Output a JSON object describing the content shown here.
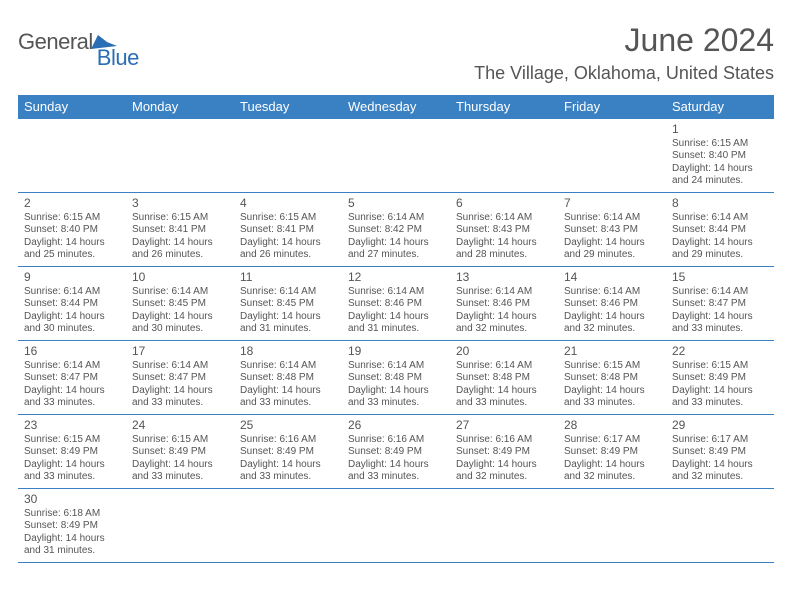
{
  "logo": {
    "general": "General",
    "blue": "Blue"
  },
  "title": "June 2024",
  "location": "The Village, Oklahoma, United States",
  "colors": {
    "header_bg": "#3a81c4",
    "header_text": "#ffffff",
    "body_text": "#555555",
    "rule": "#3a81c4",
    "logo_blue": "#2a6fb5"
  },
  "day_headers": [
    "Sunday",
    "Monday",
    "Tuesday",
    "Wednesday",
    "Thursday",
    "Friday",
    "Saturday"
  ],
  "weeks": [
    [
      null,
      null,
      null,
      null,
      null,
      null,
      {
        "n": "1",
        "sunrise": "Sunrise: 6:15 AM",
        "sunset": "Sunset: 8:40 PM",
        "daylight": "Daylight: 14 hours and 24 minutes."
      }
    ],
    [
      {
        "n": "2",
        "sunrise": "Sunrise: 6:15 AM",
        "sunset": "Sunset: 8:40 PM",
        "daylight": "Daylight: 14 hours and 25 minutes."
      },
      {
        "n": "3",
        "sunrise": "Sunrise: 6:15 AM",
        "sunset": "Sunset: 8:41 PM",
        "daylight": "Daylight: 14 hours and 26 minutes."
      },
      {
        "n": "4",
        "sunrise": "Sunrise: 6:15 AM",
        "sunset": "Sunset: 8:41 PM",
        "daylight": "Daylight: 14 hours and 26 minutes."
      },
      {
        "n": "5",
        "sunrise": "Sunrise: 6:14 AM",
        "sunset": "Sunset: 8:42 PM",
        "daylight": "Daylight: 14 hours and 27 minutes."
      },
      {
        "n": "6",
        "sunrise": "Sunrise: 6:14 AM",
        "sunset": "Sunset: 8:43 PM",
        "daylight": "Daylight: 14 hours and 28 minutes."
      },
      {
        "n": "7",
        "sunrise": "Sunrise: 6:14 AM",
        "sunset": "Sunset: 8:43 PM",
        "daylight": "Daylight: 14 hours and 29 minutes."
      },
      {
        "n": "8",
        "sunrise": "Sunrise: 6:14 AM",
        "sunset": "Sunset: 8:44 PM",
        "daylight": "Daylight: 14 hours and 29 minutes."
      }
    ],
    [
      {
        "n": "9",
        "sunrise": "Sunrise: 6:14 AM",
        "sunset": "Sunset: 8:44 PM",
        "daylight": "Daylight: 14 hours and 30 minutes."
      },
      {
        "n": "10",
        "sunrise": "Sunrise: 6:14 AM",
        "sunset": "Sunset: 8:45 PM",
        "daylight": "Daylight: 14 hours and 30 minutes."
      },
      {
        "n": "11",
        "sunrise": "Sunrise: 6:14 AM",
        "sunset": "Sunset: 8:45 PM",
        "daylight": "Daylight: 14 hours and 31 minutes."
      },
      {
        "n": "12",
        "sunrise": "Sunrise: 6:14 AM",
        "sunset": "Sunset: 8:46 PM",
        "daylight": "Daylight: 14 hours and 31 minutes."
      },
      {
        "n": "13",
        "sunrise": "Sunrise: 6:14 AM",
        "sunset": "Sunset: 8:46 PM",
        "daylight": "Daylight: 14 hours and 32 minutes."
      },
      {
        "n": "14",
        "sunrise": "Sunrise: 6:14 AM",
        "sunset": "Sunset: 8:46 PM",
        "daylight": "Daylight: 14 hours and 32 minutes."
      },
      {
        "n": "15",
        "sunrise": "Sunrise: 6:14 AM",
        "sunset": "Sunset: 8:47 PM",
        "daylight": "Daylight: 14 hours and 33 minutes."
      }
    ],
    [
      {
        "n": "16",
        "sunrise": "Sunrise: 6:14 AM",
        "sunset": "Sunset: 8:47 PM",
        "daylight": "Daylight: 14 hours and 33 minutes."
      },
      {
        "n": "17",
        "sunrise": "Sunrise: 6:14 AM",
        "sunset": "Sunset: 8:47 PM",
        "daylight": "Daylight: 14 hours and 33 minutes."
      },
      {
        "n": "18",
        "sunrise": "Sunrise: 6:14 AM",
        "sunset": "Sunset: 8:48 PM",
        "daylight": "Daylight: 14 hours and 33 minutes."
      },
      {
        "n": "19",
        "sunrise": "Sunrise: 6:14 AM",
        "sunset": "Sunset: 8:48 PM",
        "daylight": "Daylight: 14 hours and 33 minutes."
      },
      {
        "n": "20",
        "sunrise": "Sunrise: 6:14 AM",
        "sunset": "Sunset: 8:48 PM",
        "daylight": "Daylight: 14 hours and 33 minutes."
      },
      {
        "n": "21",
        "sunrise": "Sunrise: 6:15 AM",
        "sunset": "Sunset: 8:48 PM",
        "daylight": "Daylight: 14 hours and 33 minutes."
      },
      {
        "n": "22",
        "sunrise": "Sunrise: 6:15 AM",
        "sunset": "Sunset: 8:49 PM",
        "daylight": "Daylight: 14 hours and 33 minutes."
      }
    ],
    [
      {
        "n": "23",
        "sunrise": "Sunrise: 6:15 AM",
        "sunset": "Sunset: 8:49 PM",
        "daylight": "Daylight: 14 hours and 33 minutes."
      },
      {
        "n": "24",
        "sunrise": "Sunrise: 6:15 AM",
        "sunset": "Sunset: 8:49 PM",
        "daylight": "Daylight: 14 hours and 33 minutes."
      },
      {
        "n": "25",
        "sunrise": "Sunrise: 6:16 AM",
        "sunset": "Sunset: 8:49 PM",
        "daylight": "Daylight: 14 hours and 33 minutes."
      },
      {
        "n": "26",
        "sunrise": "Sunrise: 6:16 AM",
        "sunset": "Sunset: 8:49 PM",
        "daylight": "Daylight: 14 hours and 33 minutes."
      },
      {
        "n": "27",
        "sunrise": "Sunrise: 6:16 AM",
        "sunset": "Sunset: 8:49 PM",
        "daylight": "Daylight: 14 hours and 32 minutes."
      },
      {
        "n": "28",
        "sunrise": "Sunrise: 6:17 AM",
        "sunset": "Sunset: 8:49 PM",
        "daylight": "Daylight: 14 hours and 32 minutes."
      },
      {
        "n": "29",
        "sunrise": "Sunrise: 6:17 AM",
        "sunset": "Sunset: 8:49 PM",
        "daylight": "Daylight: 14 hours and 32 minutes."
      }
    ],
    [
      {
        "n": "30",
        "sunrise": "Sunrise: 6:18 AM",
        "sunset": "Sunset: 8:49 PM",
        "daylight": "Daylight: 14 hours and 31 minutes."
      },
      null,
      null,
      null,
      null,
      null,
      null
    ]
  ]
}
